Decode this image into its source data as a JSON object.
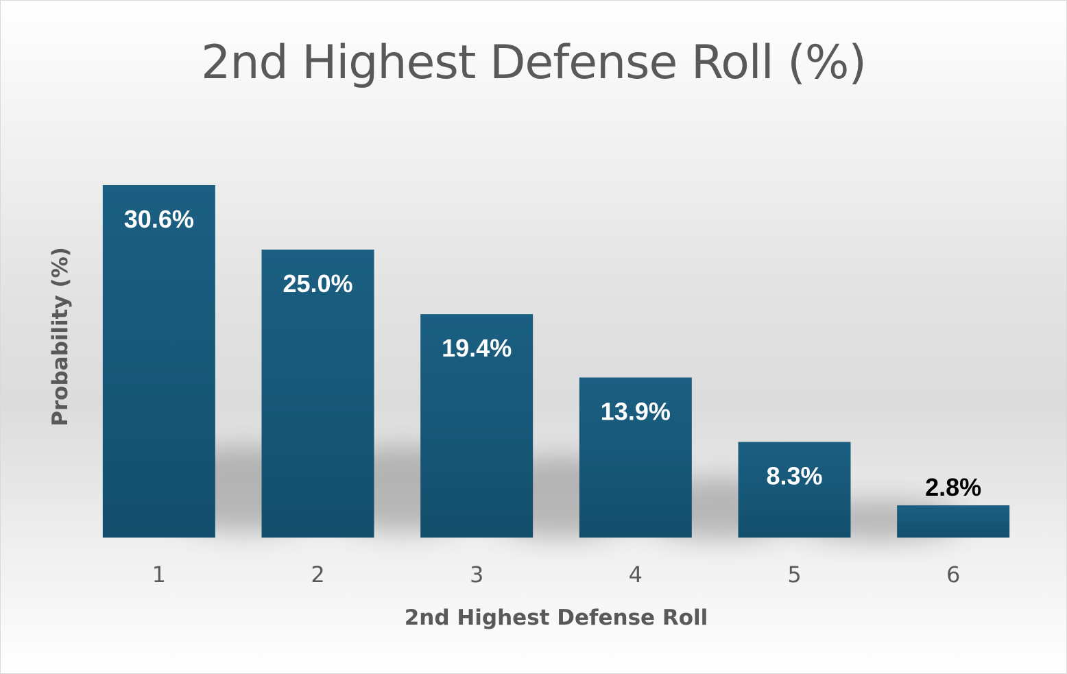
{
  "chart_data": {
    "type": "bar",
    "title": "2nd Highest Defense Roll (%)",
    "xlabel": "2nd Highest Defense Roll",
    "ylabel": "Probability (%)",
    "categories": [
      "1",
      "2",
      "3",
      "4",
      "5",
      "6"
    ],
    "values": [
      30.6,
      25.0,
      19.4,
      13.9,
      8.3,
      2.8
    ],
    "data_labels": [
      "30.6%",
      "25.0%",
      "19.4%",
      "13.9%",
      "8.3%",
      "2.8%"
    ],
    "ylim": [
      0,
      33
    ],
    "grid": false,
    "legend": "none",
    "colors": {
      "bar_top": "#1b5f82",
      "bar_bottom": "#134f6c",
      "label_inside": "#ffffff",
      "label_outside": "#000000",
      "tick": "#595959"
    }
  }
}
